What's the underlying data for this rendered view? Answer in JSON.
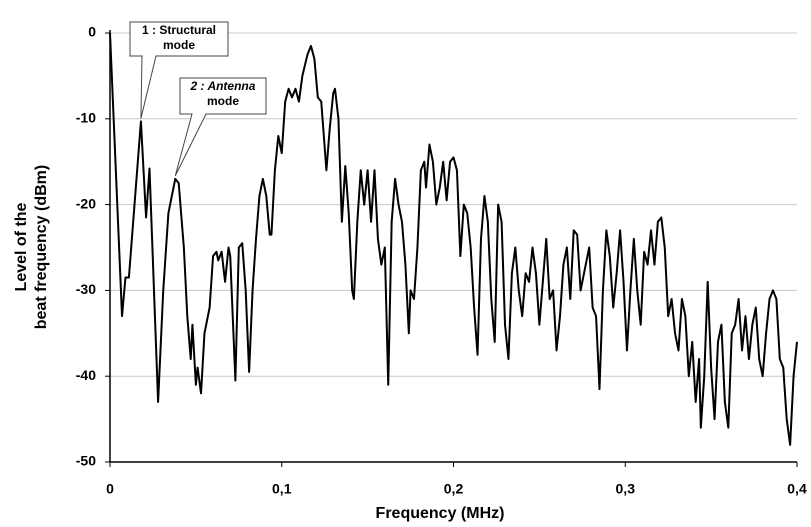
{
  "chart_data": {
    "type": "line",
    "xlabel": "Frequency (MHz)",
    "ylabel": [
      "Level of the",
      "beat frequency (dBm)"
    ],
    "xlim": [
      0,
      0.4
    ],
    "ylim": [
      -50,
      0
    ],
    "xticks": [
      0,
      {
        "value": 0.1,
        "label": "0,1"
      },
      {
        "value": 0.2,
        "label": "0,2"
      },
      {
        "value": 0.3,
        "label": "0,3"
      },
      {
        "value": 0.4,
        "label": "0,4"
      }
    ],
    "yticks": [
      0,
      -10,
      -20,
      -30,
      -40,
      -50
    ],
    "grid": true,
    "annotations": [
      {
        "lines": [
          "1 : Structural",
          "mode"
        ],
        "x": 0.018,
        "y": -10.3
      },
      {
        "lines": [
          "2 : Antenna",
          "mode"
        ],
        "x": 0.038,
        "y": -17
      }
    ],
    "series": [
      {
        "color": "#000000",
        "x": [
          0,
          0.007,
          0.009,
          0.011,
          0.018,
          0.021,
          0.023,
          0.028,
          0.031,
          0.034,
          0.038,
          0.04,
          0.043,
          0.045,
          0.047,
          0.048,
          0.05,
          0.051,
          0.053,
          0.055,
          0.057,
          0.058,
          0.06,
          0.062,
          0.063,
          0.065,
          0.067,
          0.069,
          0.07,
          0.073,
          0.075,
          0.077,
          0.079,
          0.081,
          0.083,
          0.085,
          0.087,
          0.089,
          0.091,
          0.093,
          0.094,
          0.096,
          0.098,
          0.1,
          0.102,
          0.104,
          0.106,
          0.108,
          0.11,
          0.112,
          0.115,
          0.117,
          0.119,
          0.121,
          0.123,
          0.126,
          0.128,
          0.13,
          0.131,
          0.133,
          0.135,
          0.137,
          0.139,
          0.141,
          0.142,
          0.144,
          0.146,
          0.148,
          0.15,
          0.152,
          0.154,
          0.156,
          0.158,
          0.16,
          0.162,
          0.164,
          0.166,
          0.168,
          0.17,
          0.172,
          0.174,
          0.175,
          0.177,
          0.179,
          0.181,
          0.183,
          0.184,
          0.186,
          0.188,
          0.19,
          0.192,
          0.194,
          0.196,
          0.198,
          0.2,
          0.202,
          0.204,
          0.206,
          0.208,
          0.21,
          0.212,
          0.214,
          0.216,
          0.218,
          0.22,
          0.222,
          0.224,
          0.226,
          0.228,
          0.23,
          0.232,
          0.234,
          0.236,
          0.238,
          0.24,
          0.242,
          0.244,
          0.246,
          0.248,
          0.25,
          0.252,
          0.254,
          0.256,
          0.258,
          0.26,
          0.262,
          0.264,
          0.266,
          0.268,
          0.27,
          0.272,
          0.274,
          0.276,
          0.279,
          0.281,
          0.283,
          0.285,
          0.287,
          0.289,
          0.291,
          0.293,
          0.295,
          0.297,
          0.299,
          0.301,
          0.303,
          0.305,
          0.307,
          0.309,
          0.311,
          0.313,
          0.315,
          0.317,
          0.319,
          0.321,
          0.323,
          0.325,
          0.327,
          0.329,
          0.331,
          0.333,
          0.335,
          0.337,
          0.339,
          0.341,
          0.343,
          0.344,
          0.346,
          0.348,
          0.35,
          0.352,
          0.354,
          0.356,
          0.358,
          0.36,
          0.362,
          0.364,
          0.366,
          0.368,
          0.37,
          0.372,
          0.374,
          0.376,
          0.378,
          0.38,
          0.382,
          0.384,
          0.386,
          0.388,
          0.39,
          0.392,
          0.394,
          0.396,
          0.398,
          0.4
        ],
        "values": [
          0,
          -33,
          -28.5,
          -28.5,
          -10.3,
          -21.5,
          -15.8,
          -43,
          -30,
          -21,
          -17,
          -17.5,
          -25,
          -33,
          -38,
          -34,
          -41,
          -39,
          -42,
          -35,
          -33,
          -32,
          -26,
          -25.5,
          -26.5,
          -25.5,
          -29,
          -25,
          -26,
          -40.5,
          -25,
          -24.5,
          -30,
          -39.5,
          -30,
          -24,
          -19,
          -17,
          -19,
          -23.5,
          -23.5,
          -16,
          -12,
          -14,
          -8,
          -6.5,
          -7.5,
          -6.5,
          -8,
          -5,
          -2.5,
          -1.5,
          -3,
          -7.5,
          -8,
          -16,
          -11,
          -7,
          -6.5,
          -10,
          -22,
          -15.5,
          -21,
          -30,
          -31,
          -22,
          -16,
          -20,
          -16,
          -22,
          -16,
          -24,
          -27,
          -25,
          -41,
          -22,
          -17,
          -20,
          -22,
          -27,
          -35,
          -30,
          -31,
          -25,
          -16,
          -15,
          -18,
          -13,
          -15,
          -20,
          -18,
          -15,
          -19.5,
          -15,
          -14.5,
          -16,
          -26,
          -20,
          -21,
          -25,
          -32,
          -37.5,
          -24,
          -19,
          -22,
          -31,
          -36,
          -20,
          -22,
          -34,
          -38,
          -28,
          -25,
          -30,
          -33,
          -28,
          -29,
          -25,
          -28,
          -34,
          -29,
          -24,
          -31,
          -30,
          -37,
          -33,
          -27,
          -25,
          -31,
          -23,
          -23.5,
          -30,
          -28,
          -25,
          -32,
          -33,
          -41.5,
          -30,
          -23,
          -26,
          -32,
          -28,
          -23,
          -29,
          -37,
          -30,
          -24,
          -30,
          -34,
          -25.5,
          -27,
          -23,
          -27,
          -22,
          -21.5,
          -25,
          -33,
          -31,
          -35,
          -37,
          -31,
          -33,
          -40,
          -36,
          -43,
          -38,
          -46,
          -40,
          -29,
          -39,
          -45,
          -36,
          -34,
          -43,
          -46,
          -35,
          -34,
          -31,
          -37,
          -33,
          -38,
          -34,
          -32,
          -38,
          -40,
          -35,
          -31,
          -30,
          -31,
          -38,
          -39,
          -45,
          -48,
          -40,
          -36
        ]
      }
    ]
  }
}
